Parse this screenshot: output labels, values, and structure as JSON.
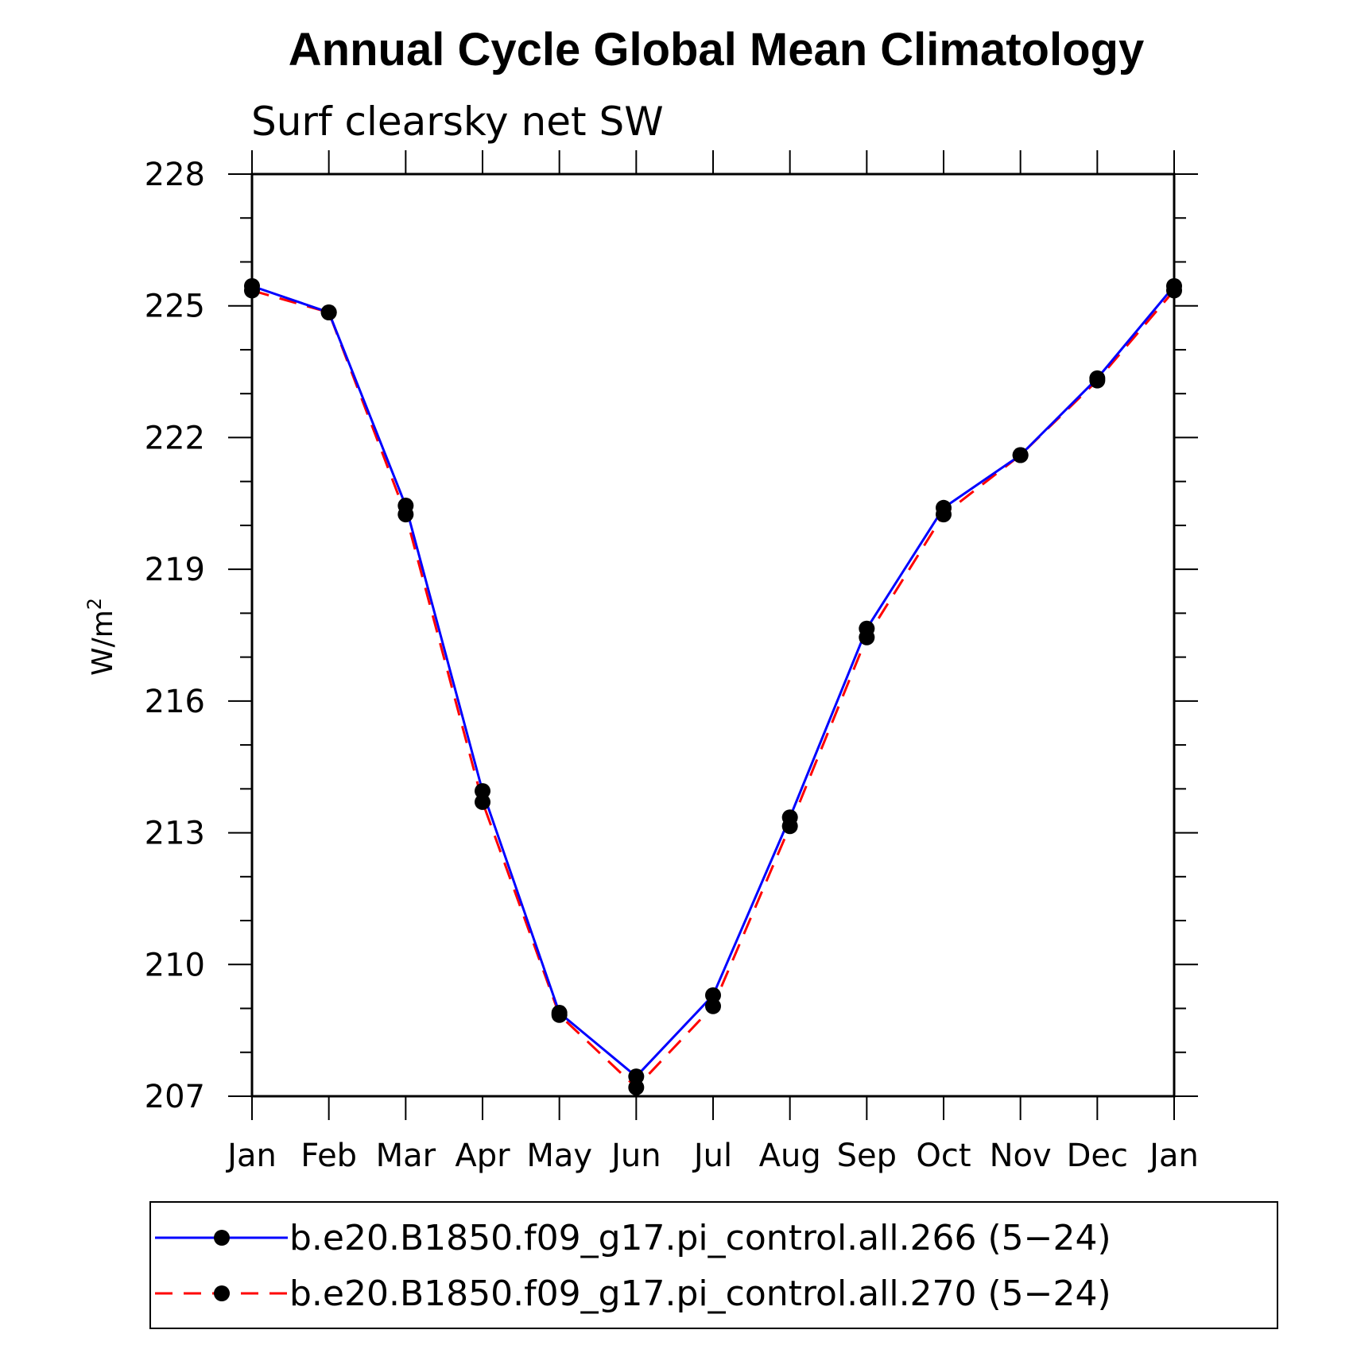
{
  "chart_data": {
    "type": "line",
    "title": "Annual Cycle Global Mean Climatology",
    "subtitle": "Surf clearsky net SW",
    "ylabel": "W/m",
    "ylabel_sup": "2",
    "categories": [
      "Jan",
      "Feb",
      "Mar",
      "Apr",
      "May",
      "Jun",
      "Jul",
      "Aug",
      "Sep",
      "Oct",
      "Nov",
      "Dec",
      "Jan"
    ],
    "ylim": [
      207,
      228
    ],
    "yticks": [
      "207",
      "210",
      "213",
      "216",
      "219",
      "222",
      "225",
      "228"
    ],
    "series": [
      {
        "name": "b.e20.B1850.f09_g17.pi_control.all.266 (5−24)",
        "color": "#0000ff",
        "dash": "solid",
        "values": [
          225.45,
          224.85,
          220.45,
          213.95,
          208.9,
          207.45,
          209.3,
          213.35,
          217.65,
          220.4,
          221.6,
          223.35,
          225.45
        ]
      },
      {
        "name": "b.e20.B1850.f09_g17.pi_control.all.270 (5−24)",
        "color": "#ff0000",
        "dash": "dashed",
        "values": [
          225.35,
          224.85,
          220.25,
          213.7,
          208.85,
          207.2,
          209.05,
          213.15,
          217.45,
          220.25,
          221.6,
          223.3,
          225.35
        ]
      }
    ]
  }
}
